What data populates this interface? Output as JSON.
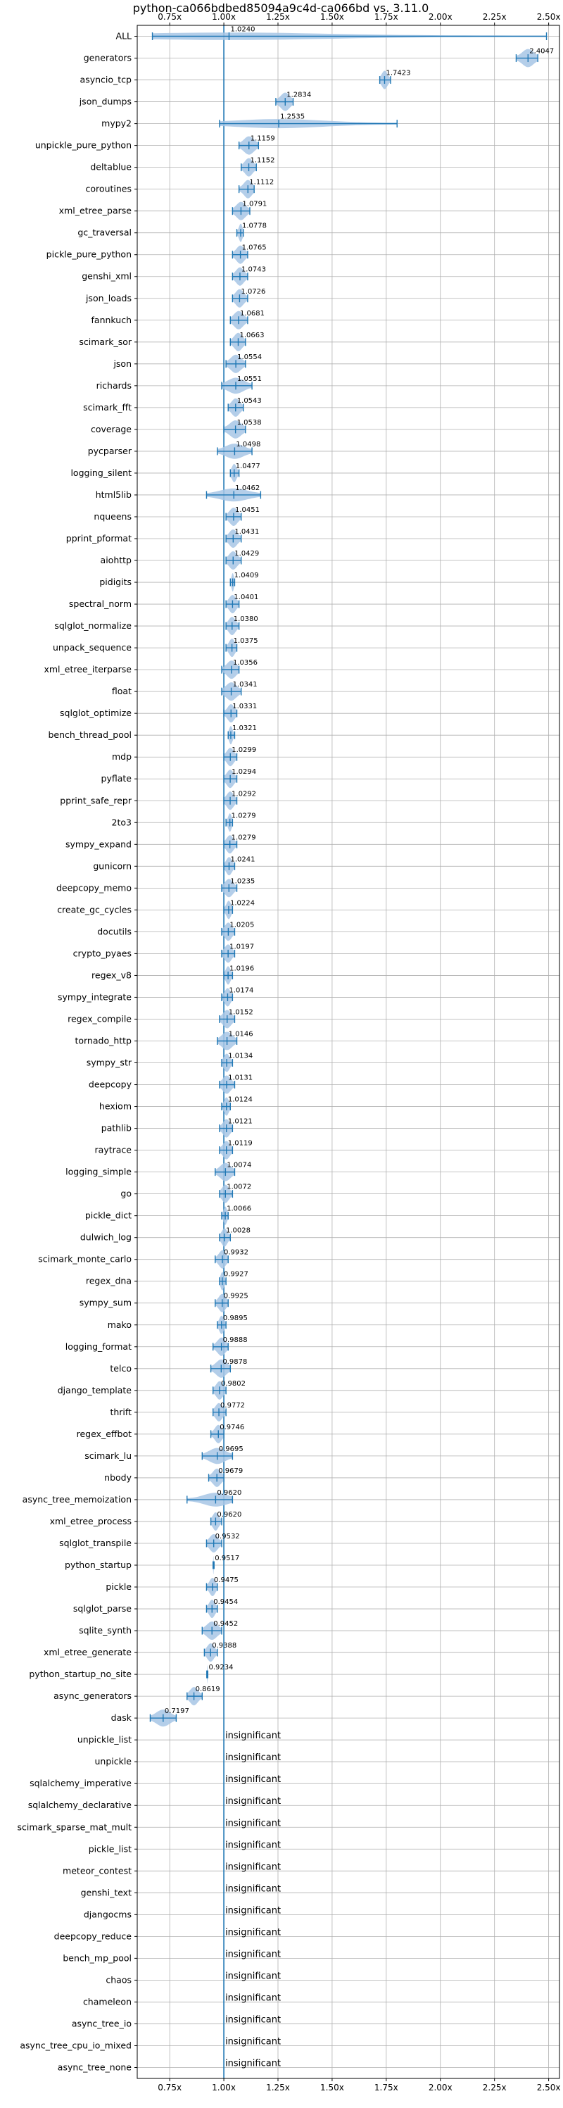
{
  "chart_data": {
    "type": "violin",
    "title": "python-ca066bdbed85094a9c4d-ca066bd vs. 3.11.0",
    "xlabel": "",
    "ylabel": "",
    "xlim": [
      0.6,
      2.55
    ],
    "x_ticks": [
      0.75,
      1.0,
      1.25,
      1.5,
      1.75,
      2.0,
      2.25,
      2.5
    ],
    "x_tick_labels": [
      "0.75x",
      "1.00x",
      "1.25x",
      "1.50x",
      "1.75x",
      "2.00x",
      "2.25x",
      "2.50x"
    ],
    "reference_line": 1.0,
    "grid": true,
    "colors": {
      "accent": "#1f77b4",
      "violin_fill": "#a7c6e5",
      "grid": "#b0b0b0"
    },
    "insignificant_label": "insignificant",
    "benchmarks": [
      {
        "name": "ALL",
        "value": "1.0240",
        "mean": 1.024,
        "min": 0.67,
        "max": 2.49
      },
      {
        "name": "generators",
        "value": "2.4047",
        "mean": 2.4047,
        "min": 2.35,
        "max": 2.45
      },
      {
        "name": "asyncio_tcp",
        "value": "1.7423",
        "mean": 1.7423,
        "min": 1.72,
        "max": 1.77
      },
      {
        "name": "json_dumps",
        "value": "1.2834",
        "mean": 1.2834,
        "min": 1.24,
        "max": 1.32
      },
      {
        "name": "mypy2",
        "value": "1.2535",
        "mean": 1.2535,
        "min": 0.98,
        "max": 1.8
      },
      {
        "name": "unpickle_pure_python",
        "value": "1.1159",
        "mean": 1.1159,
        "min": 1.07,
        "max": 1.16
      },
      {
        "name": "deltablue",
        "value": "1.1152",
        "mean": 1.1152,
        "min": 1.08,
        "max": 1.15
      },
      {
        "name": "coroutines",
        "value": "1.1112",
        "mean": 1.1112,
        "min": 1.07,
        "max": 1.14
      },
      {
        "name": "xml_etree_parse",
        "value": "1.0791",
        "mean": 1.0791,
        "min": 1.04,
        "max": 1.12
      },
      {
        "name": "gc_traversal",
        "value": "1.0778",
        "mean": 1.0778,
        "min": 1.06,
        "max": 1.09
      },
      {
        "name": "pickle_pure_python",
        "value": "1.0765",
        "mean": 1.0765,
        "min": 1.04,
        "max": 1.11
      },
      {
        "name": "genshi_xml",
        "value": "1.0743",
        "mean": 1.0743,
        "min": 1.04,
        "max": 1.11
      },
      {
        "name": "json_loads",
        "value": "1.0726",
        "mean": 1.0726,
        "min": 1.04,
        "max": 1.11
      },
      {
        "name": "fannkuch",
        "value": "1.0681",
        "mean": 1.0681,
        "min": 1.03,
        "max": 1.11
      },
      {
        "name": "scimark_sor",
        "value": "1.0663",
        "mean": 1.0663,
        "min": 1.03,
        "max": 1.1
      },
      {
        "name": "json",
        "value": "1.0554",
        "mean": 1.0554,
        "min": 1.01,
        "max": 1.1
      },
      {
        "name": "richards",
        "value": "1.0551",
        "mean": 1.0551,
        "min": 0.99,
        "max": 1.13
      },
      {
        "name": "scimark_fft",
        "value": "1.0543",
        "mean": 1.0543,
        "min": 1.02,
        "max": 1.09
      },
      {
        "name": "coverage",
        "value": "1.0538",
        "mean": 1.0538,
        "min": 1.0,
        "max": 1.1
      },
      {
        "name": "pycparser",
        "value": "1.0498",
        "mean": 1.0498,
        "min": 0.97,
        "max": 1.13
      },
      {
        "name": "logging_silent",
        "value": "1.0477",
        "mean": 1.0477,
        "min": 1.03,
        "max": 1.07
      },
      {
        "name": "html5lib",
        "value": "1.0462",
        "mean": 1.0462,
        "min": 0.92,
        "max": 1.17
      },
      {
        "name": "nqueens",
        "value": "1.0451",
        "mean": 1.0451,
        "min": 1.01,
        "max": 1.08
      },
      {
        "name": "pprint_pformat",
        "value": "1.0431",
        "mean": 1.0431,
        "min": 1.01,
        "max": 1.08
      },
      {
        "name": "aiohttp",
        "value": "1.0429",
        "mean": 1.0429,
        "min": 1.01,
        "max": 1.08
      },
      {
        "name": "pidigits",
        "value": "1.0409",
        "mean": 1.0409,
        "min": 1.03,
        "max": 1.05
      },
      {
        "name": "spectral_norm",
        "value": "1.0401",
        "mean": 1.0401,
        "min": 1.01,
        "max": 1.07
      },
      {
        "name": "sqlglot_normalize",
        "value": "1.0380",
        "mean": 1.038,
        "min": 1.01,
        "max": 1.07
      },
      {
        "name": "unpack_sequence",
        "value": "1.0375",
        "mean": 1.0375,
        "min": 1.01,
        "max": 1.06
      },
      {
        "name": "xml_etree_iterparse",
        "value": "1.0356",
        "mean": 1.0356,
        "min": 0.99,
        "max": 1.07
      },
      {
        "name": "float",
        "value": "1.0341",
        "mean": 1.0341,
        "min": 0.99,
        "max": 1.08
      },
      {
        "name": "sqlglot_optimize",
        "value": "1.0331",
        "mean": 1.0331,
        "min": 1.0,
        "max": 1.06
      },
      {
        "name": "bench_thread_pool",
        "value": "1.0321",
        "mean": 1.0321,
        "min": 1.02,
        "max": 1.05
      },
      {
        "name": "mdp",
        "value": "1.0299",
        "mean": 1.0299,
        "min": 1.0,
        "max": 1.06
      },
      {
        "name": "pyflate",
        "value": "1.0294",
        "mean": 1.0294,
        "min": 1.0,
        "max": 1.06
      },
      {
        "name": "pprint_safe_repr",
        "value": "1.0292",
        "mean": 1.0292,
        "min": 1.0,
        "max": 1.06
      },
      {
        "name": "2to3",
        "value": "1.0279",
        "mean": 1.0279,
        "min": 1.01,
        "max": 1.04
      },
      {
        "name": "sympy_expand",
        "value": "1.0279",
        "mean": 1.0279,
        "min": 1.0,
        "max": 1.06
      },
      {
        "name": "gunicorn",
        "value": "1.0241",
        "mean": 1.0241,
        "min": 1.0,
        "max": 1.05
      },
      {
        "name": "deepcopy_memo",
        "value": "1.0235",
        "mean": 1.0235,
        "min": 0.99,
        "max": 1.06
      },
      {
        "name": "create_gc_cycles",
        "value": "1.0224",
        "mean": 1.0224,
        "min": 1.0,
        "max": 1.04
      },
      {
        "name": "docutils",
        "value": "1.0205",
        "mean": 1.0205,
        "min": 0.99,
        "max": 1.05
      },
      {
        "name": "crypto_pyaes",
        "value": "1.0197",
        "mean": 1.0197,
        "min": 0.99,
        "max": 1.05
      },
      {
        "name": "regex_v8",
        "value": "1.0196",
        "mean": 1.0196,
        "min": 1.0,
        "max": 1.04
      },
      {
        "name": "sympy_integrate",
        "value": "1.0174",
        "mean": 1.0174,
        "min": 0.99,
        "max": 1.04
      },
      {
        "name": "regex_compile",
        "value": "1.0152",
        "mean": 1.0152,
        "min": 0.98,
        "max": 1.05
      },
      {
        "name": "tornado_http",
        "value": "1.0146",
        "mean": 1.0146,
        "min": 0.97,
        "max": 1.06
      },
      {
        "name": "sympy_str",
        "value": "1.0134",
        "mean": 1.0134,
        "min": 0.99,
        "max": 1.04
      },
      {
        "name": "deepcopy",
        "value": "1.0131",
        "mean": 1.0131,
        "min": 0.98,
        "max": 1.05
      },
      {
        "name": "hexiom",
        "value": "1.0124",
        "mean": 1.0124,
        "min": 0.99,
        "max": 1.03
      },
      {
        "name": "pathlib",
        "value": "1.0121",
        "mean": 1.0121,
        "min": 0.98,
        "max": 1.04
      },
      {
        "name": "raytrace",
        "value": "1.0119",
        "mean": 1.0119,
        "min": 0.98,
        "max": 1.04
      },
      {
        "name": "logging_simple",
        "value": "1.0074",
        "mean": 1.0074,
        "min": 0.96,
        "max": 1.05
      },
      {
        "name": "go",
        "value": "1.0072",
        "mean": 1.0072,
        "min": 0.98,
        "max": 1.04
      },
      {
        "name": "pickle_dict",
        "value": "1.0066",
        "mean": 1.0066,
        "min": 0.99,
        "max": 1.02
      },
      {
        "name": "dulwich_log",
        "value": "1.0028",
        "mean": 1.0028,
        "min": 0.98,
        "max": 1.03
      },
      {
        "name": "scimark_monte_carlo",
        "value": "0.9932",
        "mean": 0.9932,
        "min": 0.96,
        "max": 1.02
      },
      {
        "name": "regex_dna",
        "value": "0.9927",
        "mean": 0.9927,
        "min": 0.98,
        "max": 1.01
      },
      {
        "name": "sympy_sum",
        "value": "0.9925",
        "mean": 0.9925,
        "min": 0.96,
        "max": 1.02
      },
      {
        "name": "mako",
        "value": "0.9895",
        "mean": 0.9895,
        "min": 0.97,
        "max": 1.01
      },
      {
        "name": "logging_format",
        "value": "0.9888",
        "mean": 0.9888,
        "min": 0.95,
        "max": 1.02
      },
      {
        "name": "telco",
        "value": "0.9878",
        "mean": 0.9878,
        "min": 0.94,
        "max": 1.03
      },
      {
        "name": "django_template",
        "value": "0.9802",
        "mean": 0.9802,
        "min": 0.95,
        "max": 1.01
      },
      {
        "name": "thrift",
        "value": "0.9772",
        "mean": 0.9772,
        "min": 0.95,
        "max": 1.01
      },
      {
        "name": "regex_effbot",
        "value": "0.9746",
        "mean": 0.9746,
        "min": 0.94,
        "max": 1.0
      },
      {
        "name": "scimark_lu",
        "value": "0.9695",
        "mean": 0.9695,
        "min": 0.9,
        "max": 1.04
      },
      {
        "name": "nbody",
        "value": "0.9679",
        "mean": 0.9679,
        "min": 0.93,
        "max": 1.0
      },
      {
        "name": "async_tree_memoization",
        "value": "0.9620",
        "mean": 0.962,
        "min": 0.83,
        "max": 1.04
      },
      {
        "name": "xml_etree_process",
        "value": "0.9620",
        "mean": 0.962,
        "min": 0.94,
        "max": 0.99
      },
      {
        "name": "sqlglot_transpile",
        "value": "0.9532",
        "mean": 0.9532,
        "min": 0.92,
        "max": 0.99
      },
      {
        "name": "python_startup",
        "value": "0.9517",
        "mean": 0.9517,
        "min": 0.95,
        "max": 0.955
      },
      {
        "name": "pickle",
        "value": "0.9475",
        "mean": 0.9475,
        "min": 0.92,
        "max": 0.97
      },
      {
        "name": "sqlglot_parse",
        "value": "0.9454",
        "mean": 0.9454,
        "min": 0.92,
        "max": 0.97
      },
      {
        "name": "sqlite_synth",
        "value": "0.9452",
        "mean": 0.9452,
        "min": 0.9,
        "max": 0.99
      },
      {
        "name": "xml_etree_generate",
        "value": "0.9388",
        "mean": 0.9388,
        "min": 0.91,
        "max": 0.97
      },
      {
        "name": "python_startup_no_site",
        "value": "0.9234",
        "mean": 0.9234,
        "min": 0.921,
        "max": 0.926
      },
      {
        "name": "async_generators",
        "value": "0.8619",
        "mean": 0.8619,
        "min": 0.83,
        "max": 0.9
      },
      {
        "name": "dask",
        "value": "0.7197",
        "mean": 0.7197,
        "min": 0.66,
        "max": 0.78
      },
      {
        "name": "unpickle_list",
        "value": null,
        "mean": null,
        "min": null,
        "max": null
      },
      {
        "name": "unpickle",
        "value": null,
        "mean": null,
        "min": null,
        "max": null
      },
      {
        "name": "sqlalchemy_imperative",
        "value": null,
        "mean": null,
        "min": null,
        "max": null
      },
      {
        "name": "sqlalchemy_declarative",
        "value": null,
        "mean": null,
        "min": null,
        "max": null
      },
      {
        "name": "scimark_sparse_mat_mult",
        "value": null,
        "mean": null,
        "min": null,
        "max": null
      },
      {
        "name": "pickle_list",
        "value": null,
        "mean": null,
        "min": null,
        "max": null
      },
      {
        "name": "meteor_contest",
        "value": null,
        "mean": null,
        "min": null,
        "max": null
      },
      {
        "name": "genshi_text",
        "value": null,
        "mean": null,
        "min": null,
        "max": null
      },
      {
        "name": "djangocms",
        "value": null,
        "mean": null,
        "min": null,
        "max": null
      },
      {
        "name": "deepcopy_reduce",
        "value": null,
        "mean": null,
        "min": null,
        "max": null
      },
      {
        "name": "bench_mp_pool",
        "value": null,
        "mean": null,
        "min": null,
        "max": null
      },
      {
        "name": "chaos",
        "value": null,
        "mean": null,
        "min": null,
        "max": null
      },
      {
        "name": "chameleon",
        "value": null,
        "mean": null,
        "min": null,
        "max": null
      },
      {
        "name": "async_tree_io",
        "value": null,
        "mean": null,
        "min": null,
        "max": null
      },
      {
        "name": "async_tree_cpu_io_mixed",
        "value": null,
        "mean": null,
        "min": null,
        "max": null
      },
      {
        "name": "async_tree_none",
        "value": null,
        "mean": null,
        "min": null,
        "max": null
      }
    ]
  }
}
